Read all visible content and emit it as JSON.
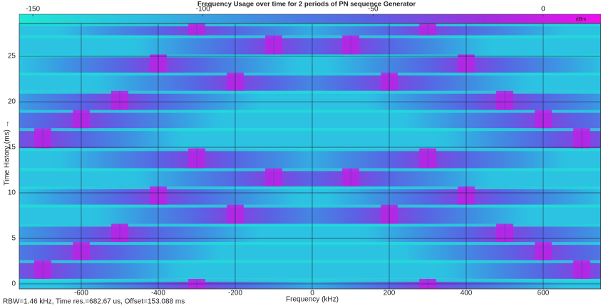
{
  "chart_data": {
    "type": "spectrogram",
    "title": "Frequency Usage over time for 2 periods of PN sequence Generator",
    "xlabel": "Frequency (kHz)",
    "ylabel": "Time History (ms) →",
    "footer": "RBW=1.46 kHz, Time res.=682.67 us, Offset=153.088 ms",
    "xlim": [
      -761,
      750
    ],
    "xticks": [
      -600,
      -400,
      -200,
      0,
      200,
      400,
      600
    ],
    "ylim": [
      -0.55,
      28.6
    ],
    "yticks": [
      0,
      5,
      10,
      15,
      20,
      25
    ],
    "clim": [
      -154,
      17
    ],
    "cticks": [
      -150,
      -100,
      -50,
      0
    ],
    "clabel": "dBm",
    "colormap": [
      "#1ee8d4",
      "#2cc0e2",
      "#3f8fe2",
      "#5a62e4",
      "#a02ee0",
      "#f010ee"
    ],
    "grid": true,
    "peak_dbm": -8,
    "floor_dbm": -122,
    "hops": [
      {
        "t0": -0.55,
        "t1": 0.55,
        "f": [
          -300,
          300
        ]
      },
      {
        "t0": 0.55,
        "t1": 2.6,
        "f": [
          -700,
          700
        ]
      },
      {
        "t0": 2.6,
        "t1": 4.6,
        "f": [
          -600,
          600
        ]
      },
      {
        "t0": 4.6,
        "t1": 6.6,
        "f": [
          -500,
          500
        ]
      },
      {
        "t0": 6.6,
        "t1": 8.7,
        "f": [
          -200,
          200
        ]
      },
      {
        "t0": 8.7,
        "t1": 10.7,
        "f": [
          -400,
          400
        ]
      },
      {
        "t0": 10.7,
        "t1": 12.7,
        "f": [
          -100,
          100
        ]
      },
      {
        "t0": 12.7,
        "t1": 14.9,
        "f": [
          -300,
          300
        ]
      },
      {
        "t0": 14.9,
        "t1": 17.1,
        "f": [
          -700,
          700
        ]
      },
      {
        "t0": 17.1,
        "t1": 19.1,
        "f": [
          -600,
          600
        ]
      },
      {
        "t0": 19.1,
        "t1": 21.2,
        "f": [
          -500,
          500
        ]
      },
      {
        "t0": 21.2,
        "t1": 23.2,
        "f": [
          -200,
          200
        ]
      },
      {
        "t0": 23.2,
        "t1": 25.2,
        "f": [
          -400,
          400
        ]
      },
      {
        "t0": 25.2,
        "t1": 27.3,
        "f": [
          -100,
          100
        ]
      },
      {
        "t0": 27.3,
        "t1": 28.6,
        "f": [
          -300,
          300
        ]
      }
    ]
  }
}
